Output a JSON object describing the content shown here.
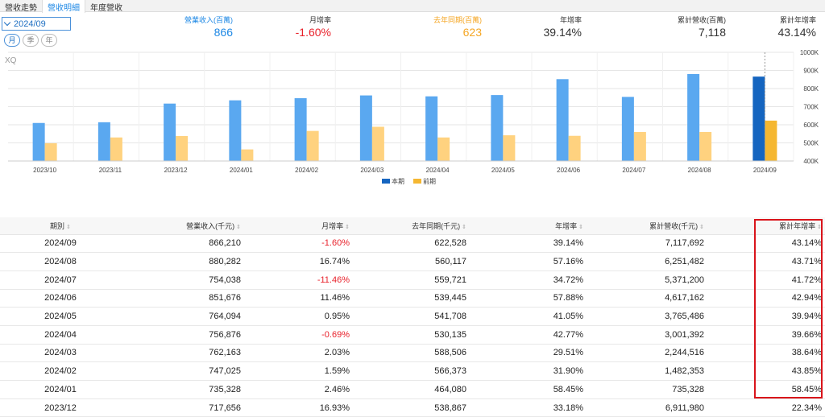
{
  "tabs": [
    {
      "label": "營收走勢"
    },
    {
      "label": "營收明細"
    },
    {
      "label": "年度營收"
    }
  ],
  "date_select": {
    "value": "2024/09"
  },
  "period_buttons": [
    {
      "label": "月"
    },
    {
      "label": "季"
    },
    {
      "label": "年"
    }
  ],
  "stats": [
    {
      "label": "營業收入(百萬)",
      "value": "866",
      "color": "#1e88e5"
    },
    {
      "label": "月增率",
      "value": "-1.60%",
      "color": "#e8202a"
    },
    {
      "label": "去年同期(百萬)",
      "value": "623",
      "color": "#f5a623"
    },
    {
      "label": "年增率",
      "value": "39.14%",
      "color": "#333333"
    },
    {
      "label": "累計營收(百萬)",
      "value": "7,118",
      "color": "#333333"
    },
    {
      "label": "累計年增率",
      "value": "43.14%",
      "color": "#333333"
    }
  ],
  "watermark": "XQ",
  "chart_data": {
    "type": "bar",
    "categories": [
      "2023/10",
      "2023/11",
      "2023/12",
      "2024/01",
      "2024/02",
      "2024/03",
      "2024/04",
      "2024/05",
      "2024/06",
      "2024/07",
      "2024/08",
      "2024/09"
    ],
    "series": [
      {
        "name": "本期",
        "color": "#5aa8f0",
        "values": [
          610,
          614,
          717,
          735,
          747,
          762,
          757,
          764,
          852,
          754,
          880,
          866
        ]
      },
      {
        "name": "前期",
        "color": "#ffd27f",
        "values": [
          498,
          530,
          538,
          464,
          566,
          589,
          530,
          542,
          539,
          560,
          560,
          623
        ]
      }
    ],
    "yticks": [
      "400K",
      "500K",
      "600K",
      "700K",
      "800K",
      "900K",
      "1000K"
    ],
    "ylim": [
      400,
      1000
    ],
    "unit": "百萬",
    "legend_position": "bottom",
    "highlight_last_color": "#1565c0",
    "highlight_last_prev_color": "#f5b731"
  },
  "table": {
    "headers": [
      "期別",
      "營業收入(千元)",
      "月增率",
      "去年同期(千元)",
      "年增率",
      "累計營收(千元)",
      "累計年增率"
    ],
    "rows": [
      {
        "period": "2024/09",
        "revenue": "866,210",
        "mom": "-1.60%",
        "last_year": "622,528",
        "yoy": "39.14%",
        "cum_revenue": "7,117,692",
        "cum_yoy": "43.14%"
      },
      {
        "period": "2024/08",
        "revenue": "880,282",
        "mom": "16.74%",
        "last_year": "560,117",
        "yoy": "57.16%",
        "cum_revenue": "6,251,482",
        "cum_yoy": "43.71%"
      },
      {
        "period": "2024/07",
        "revenue": "754,038",
        "mom": "-11.46%",
        "last_year": "559,721",
        "yoy": "34.72%",
        "cum_revenue": "5,371,200",
        "cum_yoy": "41.72%"
      },
      {
        "period": "2024/06",
        "revenue": "851,676",
        "mom": "11.46%",
        "last_year": "539,445",
        "yoy": "57.88%",
        "cum_revenue": "4,617,162",
        "cum_yoy": "42.94%"
      },
      {
        "period": "2024/05",
        "revenue": "764,094",
        "mom": "0.95%",
        "last_year": "541,708",
        "yoy": "41.05%",
        "cum_revenue": "3,765,486",
        "cum_yoy": "39.94%"
      },
      {
        "period": "2024/04",
        "revenue": "756,876",
        "mom": "-0.69%",
        "last_year": "530,135",
        "yoy": "42.77%",
        "cum_revenue": "3,001,392",
        "cum_yoy": "39.66%"
      },
      {
        "period": "2024/03",
        "revenue": "762,163",
        "mom": "2.03%",
        "last_year": "588,506",
        "yoy": "29.51%",
        "cum_revenue": "2,244,516",
        "cum_yoy": "38.64%"
      },
      {
        "period": "2024/02",
        "revenue": "747,025",
        "mom": "1.59%",
        "last_year": "566,373",
        "yoy": "31.90%",
        "cum_revenue": "1,482,353",
        "cum_yoy": "43.85%"
      },
      {
        "period": "2024/01",
        "revenue": "735,328",
        "mom": "2.46%",
        "last_year": "464,080",
        "yoy": "58.45%",
        "cum_revenue": "735,328",
        "cum_yoy": "58.45%"
      },
      {
        "period": "2023/12",
        "revenue": "717,656",
        "mom": "16.93%",
        "last_year": "538,867",
        "yoy": "33.18%",
        "cum_revenue": "6,911,980",
        "cum_yoy": "22.34%"
      }
    ]
  }
}
